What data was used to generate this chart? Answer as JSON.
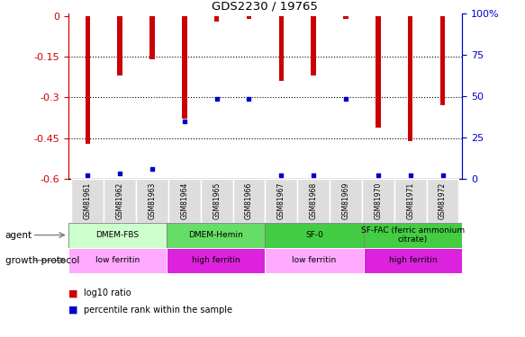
{
  "title": "GDS2230 / 19765",
  "samples": [
    "GSM81961",
    "GSM81962",
    "GSM81963",
    "GSM81964",
    "GSM81965",
    "GSM81966",
    "GSM81967",
    "GSM81968",
    "GSM81969",
    "GSM81970",
    "GSM81971",
    "GSM81972"
  ],
  "log10_ratio": [
    -0.47,
    -0.22,
    -0.16,
    -0.38,
    -0.02,
    -0.01,
    -0.24,
    -0.22,
    -0.01,
    -0.41,
    -0.46,
    -0.33
  ],
  "percentile_rank": [
    2,
    3,
    6,
    35,
    49,
    49,
    2,
    2,
    49,
    2,
    2,
    2
  ],
  "ylim_left": [
    -0.6,
    0.01
  ],
  "ylim_right": [
    0,
    100
  ],
  "yticks_left": [
    0,
    -0.15,
    -0.3,
    -0.45,
    -0.6
  ],
  "yticks_right": [
    0,
    25,
    50,
    75,
    100
  ],
  "bar_color": "#cc0000",
  "percentile_color": "#0000cc",
  "agent_groups": [
    {
      "label": "DMEM-FBS",
      "start": 0,
      "end": 3,
      "color": "#ccffcc"
    },
    {
      "label": "DMEM-Hemin",
      "start": 3,
      "end": 6,
      "color": "#66dd66"
    },
    {
      "label": "SF-0",
      "start": 6,
      "end": 9,
      "color": "#44cc44"
    },
    {
      "label": "SF-FAC (ferric ammonium\ncitrate)",
      "start": 9,
      "end": 12,
      "color": "#44cc44"
    }
  ],
  "protocol_groups": [
    {
      "label": "low ferritin",
      "start": 0,
      "end": 3,
      "color": "#ffaaff"
    },
    {
      "label": "high ferritin",
      "start": 3,
      "end": 6,
      "color": "#dd22dd"
    },
    {
      "label": "low ferritin",
      "start": 6,
      "end": 9,
      "color": "#ffaaff"
    },
    {
      "label": "high ferritin",
      "start": 9,
      "end": 12,
      "color": "#dd22dd"
    }
  ],
  "grid_yticks": [
    -0.15,
    -0.3,
    -0.45
  ],
  "left_label_color": "#cc0000",
  "right_label_color": "#0000cc"
}
